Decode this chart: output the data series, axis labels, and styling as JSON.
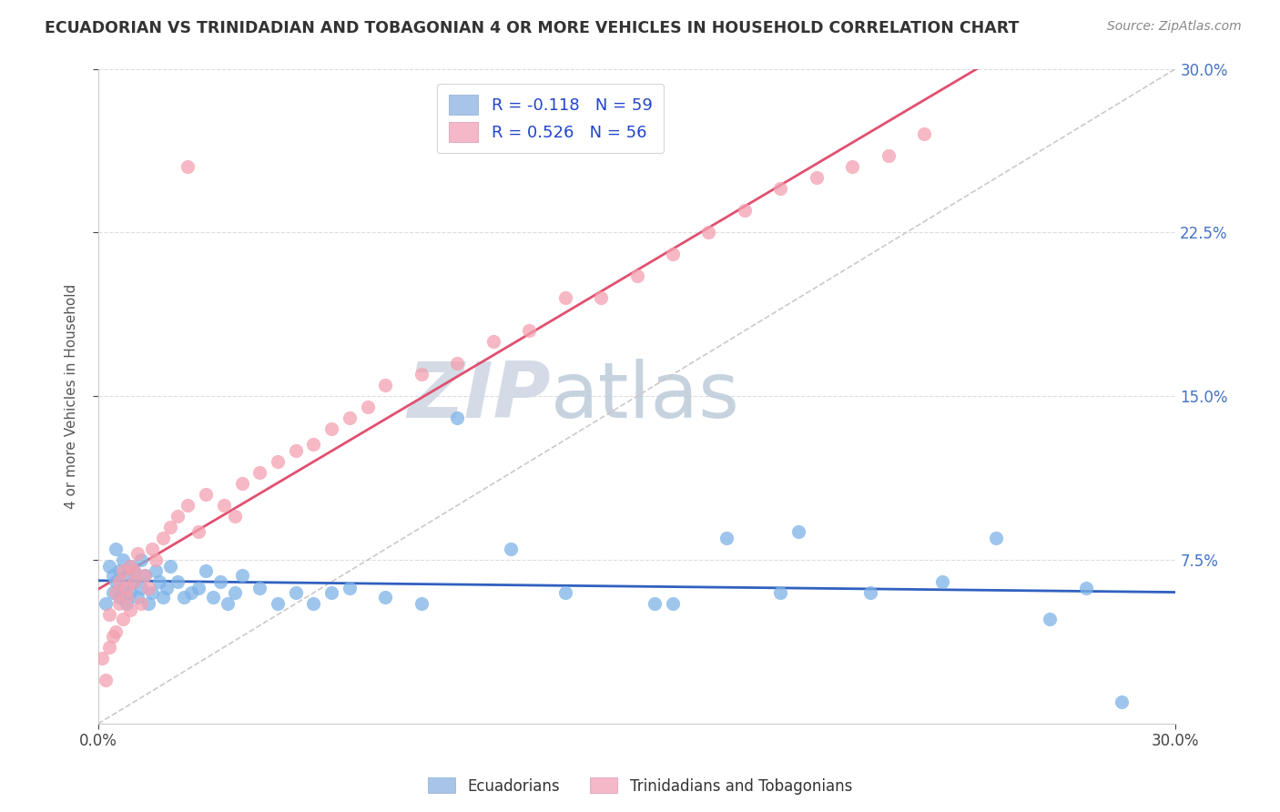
{
  "title": "ECUADORIAN VS TRINIDADIAN AND TOBAGONIAN 4 OR MORE VEHICLES IN HOUSEHOLD CORRELATION CHART",
  "source": "Source: ZipAtlas.com",
  "ylabel": "4 or more Vehicles in Household",
  "xlim": [
    0.0,
    0.3
  ],
  "ylim": [
    0.0,
    0.3
  ],
  "legend1_R": "-0.118",
  "legend1_N": "59",
  "legend2_R": "0.526",
  "legend2_N": "56",
  "blue_scatter_color": "#7EB3E8",
  "pink_scatter_color": "#F4A0B0",
  "diagonal_color": "#D0C8C8",
  "blue_line_color": "#3060C0",
  "pink_line_color": "#E05070",
  "watermark_zip": "ZIP",
  "watermark_atlas": "atlas",
  "background_color": "#FFFFFF",
  "ecu_x": [
    0.002,
    0.003,
    0.004,
    0.004,
    0.005,
    0.005,
    0.006,
    0.006,
    0.007,
    0.007,
    0.008,
    0.008,
    0.009,
    0.009,
    0.01,
    0.01,
    0.011,
    0.012,
    0.012,
    0.013,
    0.014,
    0.015,
    0.016,
    0.017,
    0.018,
    0.019,
    0.02,
    0.022,
    0.024,
    0.026,
    0.028,
    0.03,
    0.032,
    0.034,
    0.036,
    0.038,
    0.04,
    0.045,
    0.05,
    0.055,
    0.06,
    0.065,
    0.07,
    0.08,
    0.09,
    0.1,
    0.115,
    0.13,
    0.155,
    0.175,
    0.195,
    0.215,
    0.235,
    0.25,
    0.265,
    0.275,
    0.285,
    0.19,
    0.16
  ],
  "ecu_y": [
    0.055,
    0.072,
    0.068,
    0.06,
    0.08,
    0.065,
    0.058,
    0.07,
    0.062,
    0.075,
    0.068,
    0.055,
    0.072,
    0.06,
    0.065,
    0.07,
    0.058,
    0.062,
    0.075,
    0.068,
    0.055,
    0.06,
    0.07,
    0.065,
    0.058,
    0.062,
    0.072,
    0.065,
    0.058,
    0.06,
    0.062,
    0.07,
    0.058,
    0.065,
    0.055,
    0.06,
    0.068,
    0.062,
    0.055,
    0.06,
    0.055,
    0.06,
    0.062,
    0.058,
    0.055,
    0.14,
    0.08,
    0.06,
    0.055,
    0.085,
    0.088,
    0.06,
    0.065,
    0.085,
    0.048,
    0.062,
    0.01,
    0.06,
    0.055
  ],
  "trin_x": [
    0.001,
    0.002,
    0.003,
    0.003,
    0.004,
    0.005,
    0.005,
    0.006,
    0.006,
    0.007,
    0.007,
    0.008,
    0.008,
    0.009,
    0.009,
    0.01,
    0.01,
    0.011,
    0.012,
    0.013,
    0.014,
    0.015,
    0.016,
    0.018,
    0.02,
    0.022,
    0.025,
    0.028,
    0.03,
    0.035,
    0.038,
    0.04,
    0.045,
    0.05,
    0.055,
    0.06,
    0.065,
    0.07,
    0.075,
    0.08,
    0.09,
    0.1,
    0.11,
    0.12,
    0.13,
    0.14,
    0.15,
    0.16,
    0.17,
    0.18,
    0.19,
    0.2,
    0.21,
    0.22,
    0.23,
    0.025
  ],
  "trin_y": [
    0.03,
    0.02,
    0.035,
    0.05,
    0.04,
    0.06,
    0.042,
    0.055,
    0.065,
    0.048,
    0.07,
    0.058,
    0.062,
    0.072,
    0.052,
    0.065,
    0.07,
    0.078,
    0.055,
    0.068,
    0.062,
    0.08,
    0.075,
    0.085,
    0.09,
    0.095,
    0.1,
    0.088,
    0.105,
    0.1,
    0.095,
    0.11,
    0.115,
    0.12,
    0.125,
    0.128,
    0.135,
    0.14,
    0.145,
    0.155,
    0.16,
    0.165,
    0.175,
    0.18,
    0.195,
    0.195,
    0.205,
    0.215,
    0.225,
    0.235,
    0.245,
    0.25,
    0.255,
    0.26,
    0.27,
    0.255
  ]
}
